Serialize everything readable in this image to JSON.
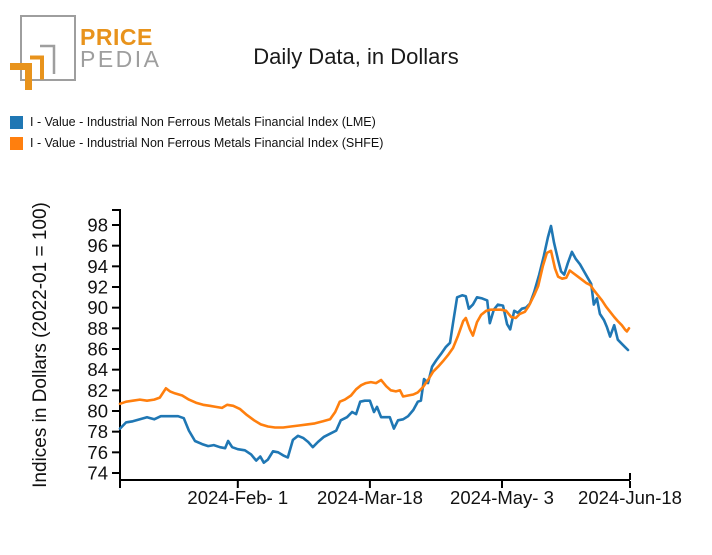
{
  "header": {
    "logo": {
      "line1": "PRICE",
      "line2": "PEDIA"
    },
    "title": "Daily Data, in Dollars"
  },
  "colors": {
    "lme_line": "#1f77b4",
    "shfe_line": "#ff7f0e",
    "logo_orange": "#e8931c",
    "logo_gray": "#9e9e9e"
  },
  "legend": [
    {
      "label": "I - Value - Industrial Non Ferrous Metals Financial Index (LME)",
      "color": "#1f77b4"
    },
    {
      "label": "I - Value - Industrial Non Ferrous Metals Financial Index (SHFE)",
      "color": "#ff7f0e"
    }
  ],
  "chart_data": {
    "type": "line",
    "title": "Daily Data, in Dollars",
    "xlabel": "",
    "ylabel": "Indices in Dollars (2022-01 = 100)",
    "ylim": [
      74,
      98
    ],
    "grid": false,
    "legend_position": "top-left",
    "yticks": [
      74,
      76,
      78,
      80,
      82,
      84,
      86,
      88,
      90,
      92,
      94,
      96,
      98
    ],
    "xticks": [
      {
        "t": 0.0,
        "label": ""
      },
      {
        "t": 0.231,
        "label": "2024-Feb- 1"
      },
      {
        "t": 0.49,
        "label": "2024-Mar-18"
      },
      {
        "t": 0.749,
        "label": "2024-May- 3"
      },
      {
        "t": 1.0,
        "label": "2024-Jun-18"
      }
    ],
    "series": [
      {
        "name": "I - Value - Industrial Non Ferrous Metals Financial Index (LME)",
        "color": "#1f77b4",
        "points": [
          [
            0.0,
            78.3
          ],
          [
            0.012,
            78.9
          ],
          [
            0.025,
            79.0
          ],
          [
            0.039,
            79.2
          ],
          [
            0.053,
            79.4
          ],
          [
            0.067,
            79.2
          ],
          [
            0.08,
            79.5
          ],
          [
            0.098,
            79.5
          ],
          [
            0.114,
            79.5
          ],
          [
            0.125,
            79.3
          ],
          [
            0.135,
            78.1
          ],
          [
            0.147,
            77.1
          ],
          [
            0.161,
            76.8
          ],
          [
            0.173,
            76.6
          ],
          [
            0.184,
            76.7
          ],
          [
            0.196,
            76.5
          ],
          [
            0.206,
            76.4
          ],
          [
            0.212,
            77.1
          ],
          [
            0.22,
            76.5
          ],
          [
            0.231,
            76.3
          ],
          [
            0.245,
            76.2
          ],
          [
            0.257,
            75.8
          ],
          [
            0.267,
            75.2
          ],
          [
            0.275,
            75.6
          ],
          [
            0.282,
            75.0
          ],
          [
            0.29,
            75.3
          ],
          [
            0.3,
            76.1
          ],
          [
            0.31,
            76.0
          ],
          [
            0.32,
            75.7
          ],
          [
            0.329,
            75.5
          ],
          [
            0.339,
            77.2
          ],
          [
            0.349,
            77.6
          ],
          [
            0.359,
            77.4
          ],
          [
            0.369,
            77.0
          ],
          [
            0.378,
            76.5
          ],
          [
            0.388,
            77.0
          ],
          [
            0.4,
            77.5
          ],
          [
            0.412,
            77.8
          ],
          [
            0.424,
            78.1
          ],
          [
            0.433,
            79.1
          ],
          [
            0.445,
            79.4
          ],
          [
            0.455,
            79.9
          ],
          [
            0.463,
            79.7
          ],
          [
            0.471,
            80.9
          ],
          [
            0.48,
            81.0
          ],
          [
            0.49,
            81.0
          ],
          [
            0.498,
            79.9
          ],
          [
            0.504,
            80.4
          ],
          [
            0.512,
            79.4
          ],
          [
            0.522,
            79.4
          ],
          [
            0.529,
            79.4
          ],
          [
            0.537,
            78.3
          ],
          [
            0.545,
            79.1
          ],
          [
            0.555,
            79.2
          ],
          [
            0.565,
            79.5
          ],
          [
            0.575,
            80.1
          ],
          [
            0.584,
            80.9
          ],
          [
            0.59,
            81.0
          ],
          [
            0.596,
            83.1
          ],
          [
            0.604,
            82.7
          ],
          [
            0.612,
            84.3
          ],
          [
            0.62,
            84.9
          ],
          [
            0.629,
            85.5
          ],
          [
            0.639,
            86.2
          ],
          [
            0.647,
            86.6
          ],
          [
            0.653,
            88.5
          ],
          [
            0.661,
            91.0
          ],
          [
            0.671,
            91.2
          ],
          [
            0.678,
            91.1
          ],
          [
            0.684,
            89.9
          ],
          [
            0.692,
            90.3
          ],
          [
            0.7,
            91.0
          ],
          [
            0.71,
            90.9
          ],
          [
            0.72,
            90.7
          ],
          [
            0.725,
            88.5
          ],
          [
            0.733,
            89.8
          ],
          [
            0.741,
            90.3
          ],
          [
            0.751,
            90.2
          ],
          [
            0.759,
            88.4
          ],
          [
            0.765,
            87.9
          ],
          [
            0.773,
            89.7
          ],
          [
            0.78,
            89.5
          ],
          [
            0.788,
            89.9
          ],
          [
            0.796,
            90.0
          ],
          [
            0.804,
            90.4
          ],
          [
            0.812,
            91.5
          ],
          [
            0.822,
            93.2
          ],
          [
            0.831,
            95.0
          ],
          [
            0.839,
            96.8
          ],
          [
            0.845,
            97.9
          ],
          [
            0.851,
            96.3
          ],
          [
            0.859,
            94.6
          ],
          [
            0.865,
            93.5
          ],
          [
            0.871,
            93.2
          ],
          [
            0.878,
            94.3
          ],
          [
            0.886,
            95.4
          ],
          [
            0.894,
            94.7
          ],
          [
            0.902,
            94.2
          ],
          [
            0.91,
            93.5
          ],
          [
            0.918,
            92.8
          ],
          [
            0.924,
            92.3
          ],
          [
            0.929,
            90.3
          ],
          [
            0.935,
            90.9
          ],
          [
            0.941,
            89.4
          ],
          [
            0.949,
            88.8
          ],
          [
            0.955,
            88.1
          ],
          [
            0.961,
            87.2
          ],
          [
            0.969,
            88.3
          ],
          [
            0.976,
            86.9
          ],
          [
            0.984,
            86.5
          ],
          [
            0.99,
            86.2
          ],
          [
            0.996,
            85.9
          ]
        ]
      },
      {
        "name": "I - Value - Industrial Non Ferrous Metals Financial Index (SHFE)",
        "color": "#ff7f0e",
        "points": [
          [
            0.0,
            80.7
          ],
          [
            0.012,
            80.9
          ],
          [
            0.025,
            81.0
          ],
          [
            0.039,
            81.1
          ],
          [
            0.053,
            81.0
          ],
          [
            0.067,
            81.1
          ],
          [
            0.078,
            81.3
          ],
          [
            0.09,
            82.2
          ],
          [
            0.098,
            81.9
          ],
          [
            0.108,
            81.7
          ],
          [
            0.122,
            81.5
          ],
          [
            0.135,
            81.1
          ],
          [
            0.149,
            80.8
          ],
          [
            0.163,
            80.6
          ],
          [
            0.176,
            80.5
          ],
          [
            0.188,
            80.4
          ],
          [
            0.2,
            80.3
          ],
          [
            0.21,
            80.6
          ],
          [
            0.222,
            80.5
          ],
          [
            0.235,
            80.2
          ],
          [
            0.249,
            79.6
          ],
          [
            0.263,
            79.1
          ],
          [
            0.276,
            78.7
          ],
          [
            0.29,
            78.5
          ],
          [
            0.304,
            78.4
          ],
          [
            0.32,
            78.4
          ],
          [
            0.335,
            78.5
          ],
          [
            0.351,
            78.6
          ],
          [
            0.367,
            78.7
          ],
          [
            0.382,
            78.8
          ],
          [
            0.398,
            79.0
          ],
          [
            0.412,
            79.2
          ],
          [
            0.422,
            79.9
          ],
          [
            0.431,
            80.9
          ],
          [
            0.441,
            81.1
          ],
          [
            0.453,
            81.5
          ],
          [
            0.463,
            82.1
          ],
          [
            0.473,
            82.5
          ],
          [
            0.482,
            82.7
          ],
          [
            0.492,
            82.8
          ],
          [
            0.502,
            82.7
          ],
          [
            0.512,
            83.0
          ],
          [
            0.522,
            82.4
          ],
          [
            0.531,
            82.0
          ],
          [
            0.541,
            81.9
          ],
          [
            0.549,
            82.0
          ],
          [
            0.555,
            81.4
          ],
          [
            0.565,
            81.5
          ],
          [
            0.575,
            81.6
          ],
          [
            0.584,
            81.8
          ],
          [
            0.594,
            82.3
          ],
          [
            0.604,
            83.0
          ],
          [
            0.614,
            83.8
          ],
          [
            0.624,
            84.3
          ],
          [
            0.633,
            84.8
          ],
          [
            0.643,
            85.4
          ],
          [
            0.653,
            86.1
          ],
          [
            0.663,
            87.3
          ],
          [
            0.673,
            88.7
          ],
          [
            0.678,
            89.0
          ],
          [
            0.686,
            87.9
          ],
          [
            0.692,
            87.3
          ],
          [
            0.7,
            88.6
          ],
          [
            0.708,
            89.3
          ],
          [
            0.718,
            89.7
          ],
          [
            0.727,
            89.8
          ],
          [
            0.737,
            89.8
          ],
          [
            0.747,
            89.8
          ],
          [
            0.757,
            89.7
          ],
          [
            0.767,
            89.1
          ],
          [
            0.776,
            89.0
          ],
          [
            0.784,
            89.4
          ],
          [
            0.794,
            89.6
          ],
          [
            0.802,
            90.2
          ],
          [
            0.812,
            91.2
          ],
          [
            0.82,
            92.1
          ],
          [
            0.829,
            94.0
          ],
          [
            0.837,
            95.3
          ],
          [
            0.845,
            95.5
          ],
          [
            0.853,
            93.8
          ],
          [
            0.859,
            93.0
          ],
          [
            0.867,
            92.8
          ],
          [
            0.875,
            92.9
          ],
          [
            0.882,
            93.6
          ],
          [
            0.89,
            93.3
          ],
          [
            0.898,
            93.0
          ],
          [
            0.906,
            92.7
          ],
          [
            0.914,
            92.4
          ],
          [
            0.922,
            92.2
          ],
          [
            0.929,
            91.7
          ],
          [
            0.937,
            91.2
          ],
          [
            0.945,
            90.7
          ],
          [
            0.953,
            90.1
          ],
          [
            0.961,
            89.6
          ],
          [
            0.969,
            89.1
          ],
          [
            0.976,
            88.7
          ],
          [
            0.984,
            88.3
          ],
          [
            0.99,
            87.9
          ],
          [
            0.994,
            87.7
          ],
          [
            0.998,
            88.0
          ]
        ]
      }
    ]
  }
}
